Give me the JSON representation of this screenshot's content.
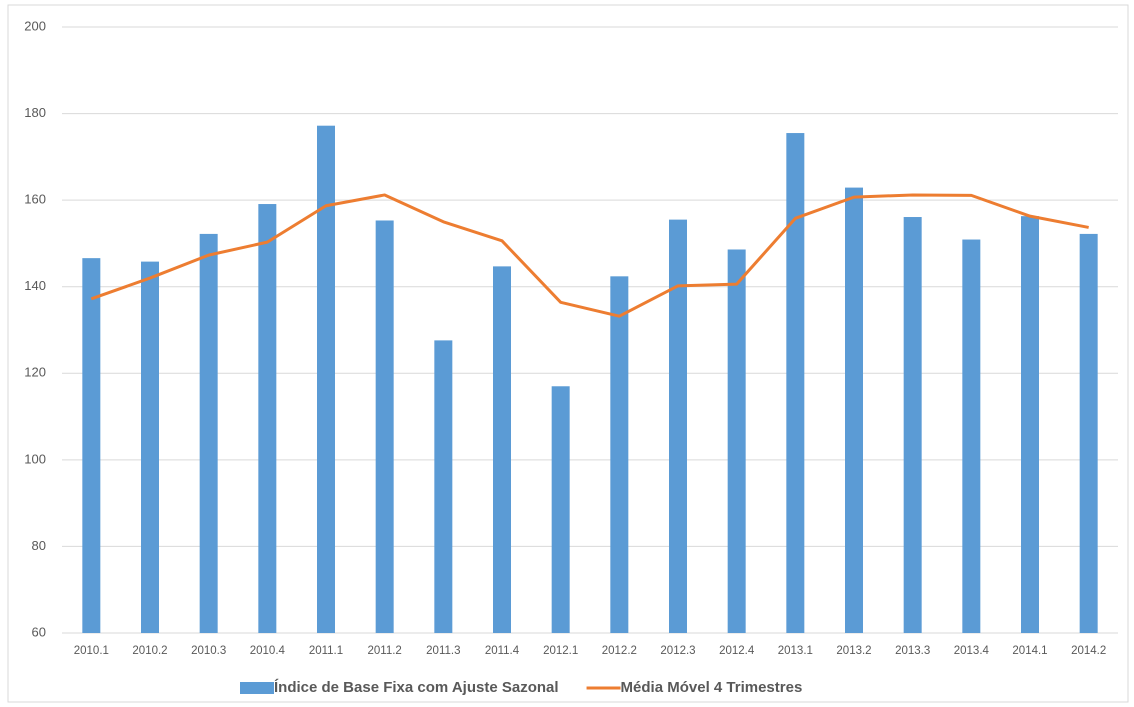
{
  "chart_data": {
    "type": "bar-line",
    "categories": [
      "2010.1",
      "2010.2",
      "2010.3",
      "2010.4",
      "2011.1",
      "2011.2",
      "2011.3",
      "2011.4",
      "2012.1",
      "2012.2",
      "2012.3",
      "2012.4",
      "2013.1",
      "2013.2",
      "2013.3",
      "2013.4",
      "2014.1",
      "2014.2"
    ],
    "series": [
      {
        "name": "Índice de Base Fixa com Ajuste Sazonal",
        "type": "bar",
        "color": "#5b9bd5",
        "values": [
          146.6,
          145.8,
          152.2,
          159.1,
          177.2,
          155.3,
          127.6,
          144.7,
          117.0,
          142.4,
          155.5,
          148.6,
          175.5,
          162.9,
          156.1,
          150.9,
          156.3,
          152.2
        ]
      },
      {
        "name": "Média Móvel 4 Trimestres",
        "type": "line",
        "color": "#ed7d31",
        "values": [
          137.2,
          142.0,
          147.3,
          150.3,
          158.7,
          161.2,
          155.0,
          150.6,
          136.4,
          133.2,
          140.2,
          140.6,
          155.8,
          160.7,
          161.2,
          161.1,
          156.3,
          153.7
        ]
      }
    ],
    "ylim": [
      60,
      200
    ],
    "yticks": [
      60,
      80,
      100,
      120,
      140,
      160,
      180,
      200
    ],
    "grid": true,
    "legend": "bottom"
  }
}
